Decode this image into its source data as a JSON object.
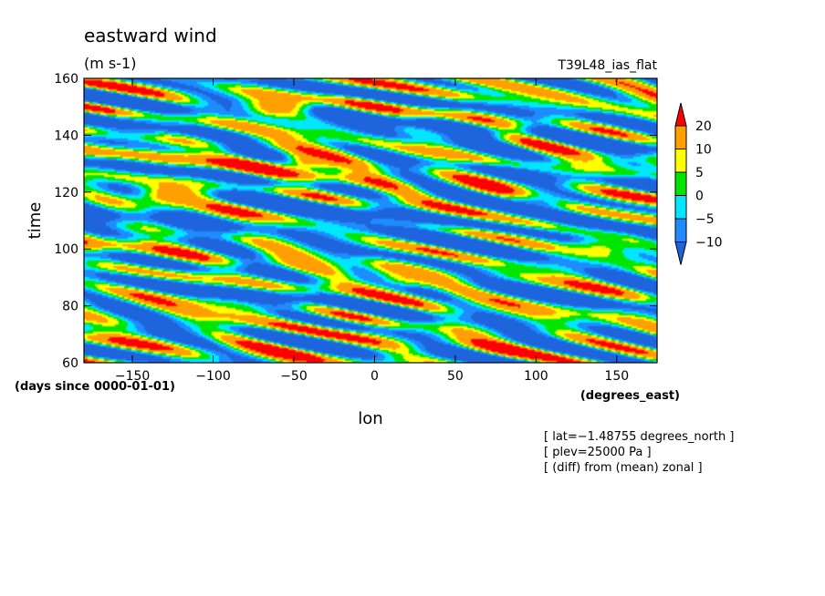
{
  "chart_data": {
    "type": "heatmap",
    "title": "eastward wind",
    "units": "(m s-1)",
    "experiment": "T39L48_ias_flat",
    "xlabel": "lon",
    "xunits": "(degrees_east)",
    "ylabel": "time",
    "yunits": "(days since 0000-01-01)",
    "xlim": [
      -180,
      175
    ],
    "ylim": [
      60,
      160
    ],
    "xticks": [
      -150,
      -100,
      -50,
      0,
      50,
      100,
      150
    ],
    "yticks": [
      60,
      80,
      100,
      120,
      140,
      160
    ],
    "colorbar": {
      "levels": [
        -10,
        -5,
        0,
        5,
        10,
        20
      ],
      "labels": [
        "20",
        "10",
        "5",
        "0",
        "−5",
        "−10"
      ],
      "colors": [
        "#1e64dc",
        "#1e8cff",
        "#00e6ff",
        "#00e600",
        "#ffff00",
        "#ffa000",
        "#ff0000"
      ],
      "extend": "both"
    },
    "notes": [
      "[ lat=−1.48755 degrees_north ]",
      "[ plev=25000 Pa ]",
      "[ (diff) from (mean) zonal ]"
    ],
    "features": [
      {
        "lon": -125,
        "time": 119,
        "value": 21
      },
      {
        "lon": -60,
        "time": 150,
        "value": 21
      },
      {
        "lon": -40,
        "time": 131,
        "value": 21
      },
      {
        "lon": 20,
        "time": 90,
        "value": 12
      },
      {
        "lon": 140,
        "time": 100,
        "value": 10
      },
      {
        "lon": -150,
        "time": 143,
        "value": -12
      },
      {
        "lon": 100,
        "time": 116,
        "value": -12
      }
    ]
  }
}
